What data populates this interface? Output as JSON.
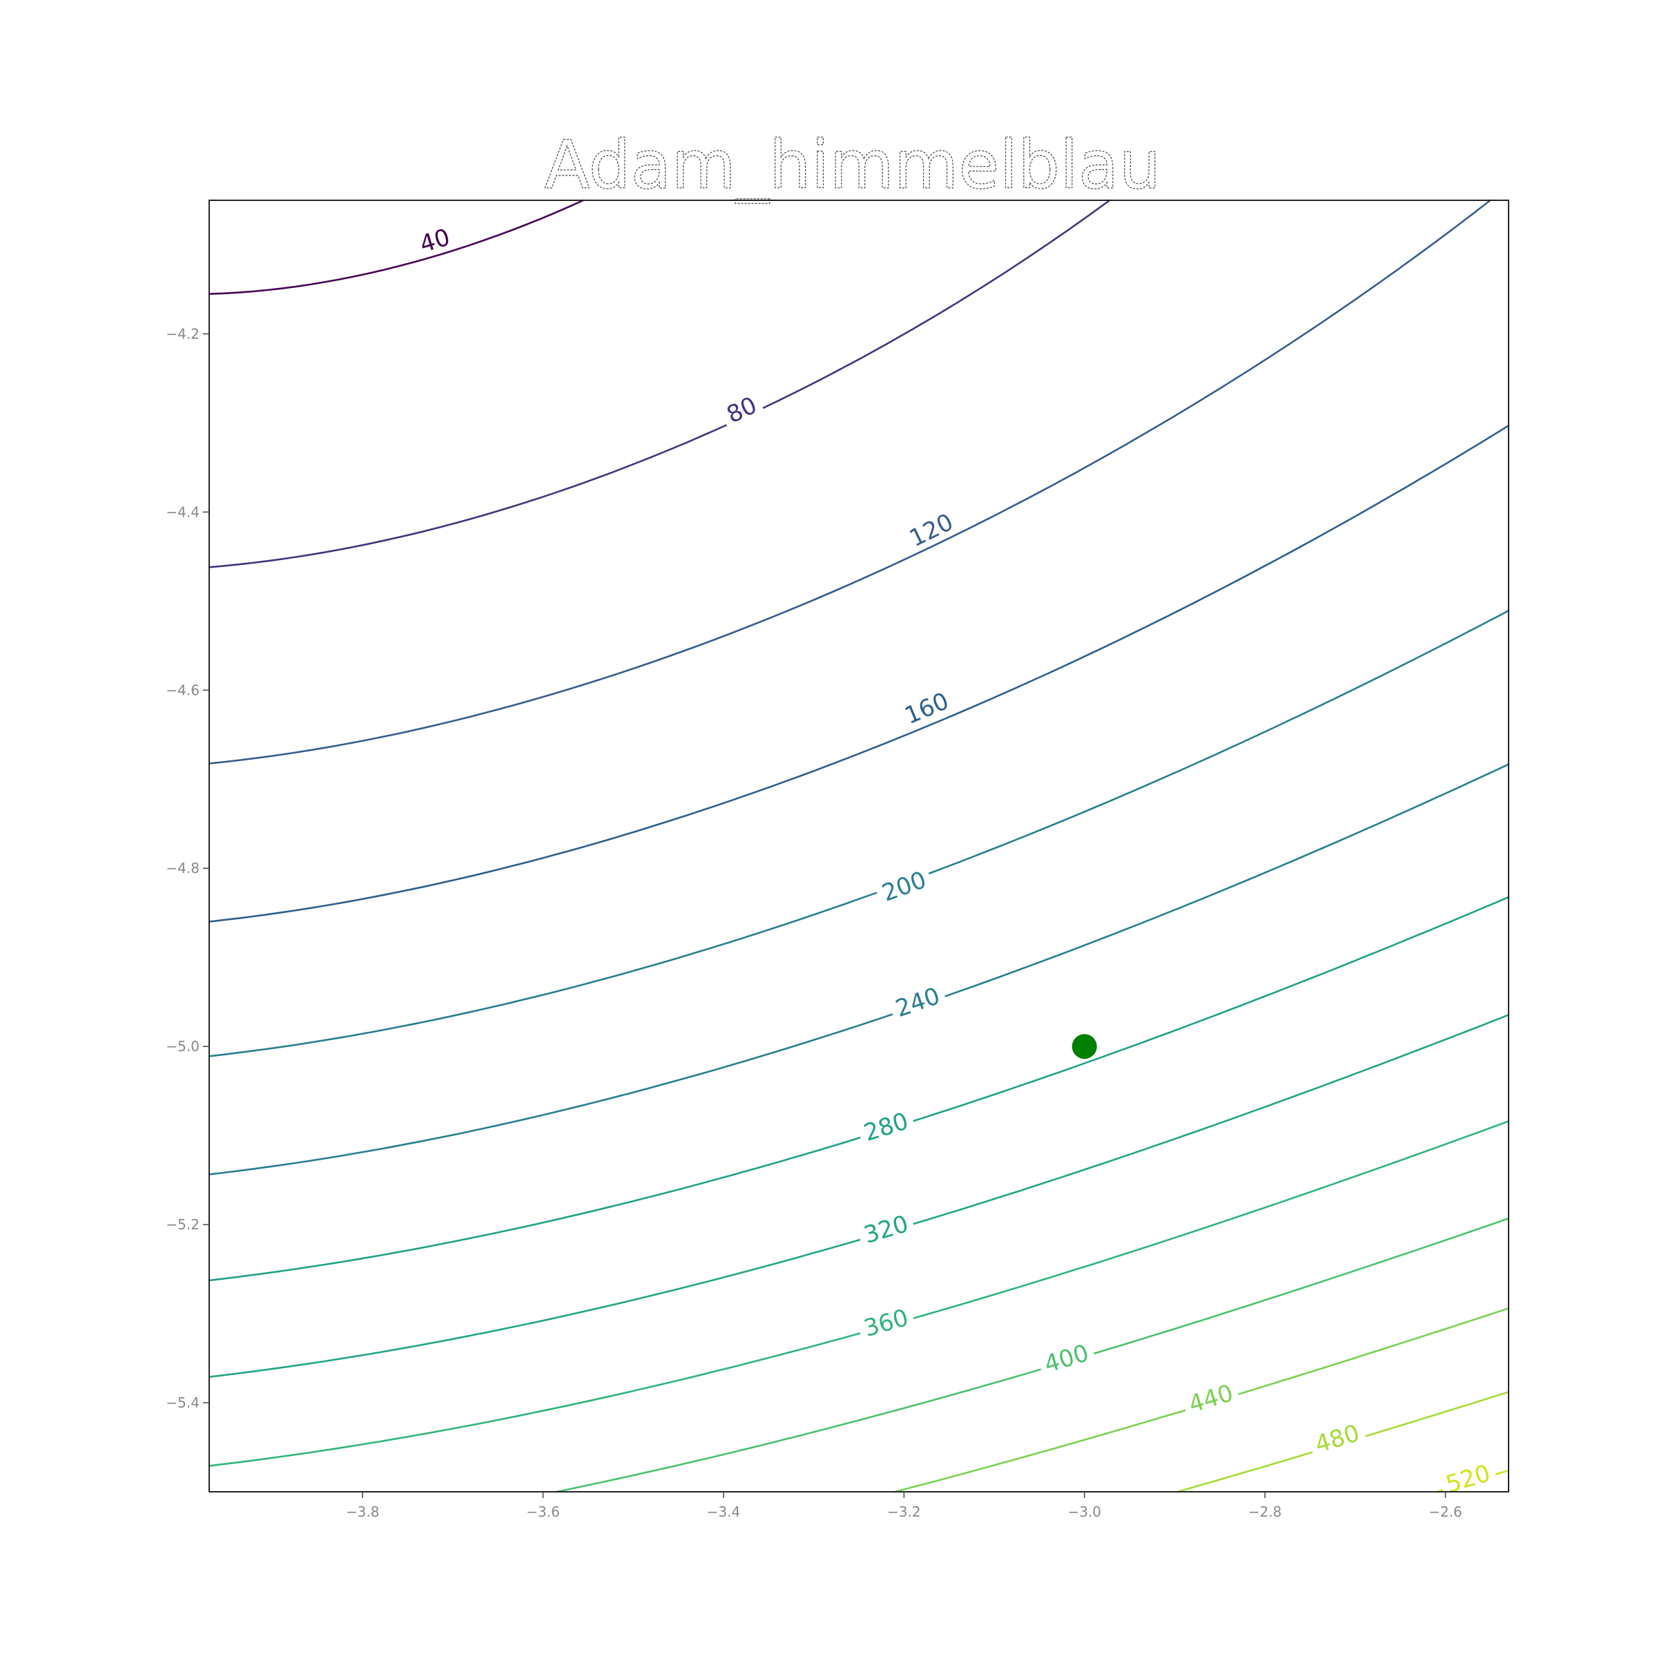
{
  "chart_data": {
    "type": "contour",
    "title": "Adam_himmelblau",
    "xlabel": "",
    "ylabel": "",
    "xlim": [
      -3.97,
      -2.53
    ],
    "ylim": [
      -5.5,
      -4.05
    ],
    "x_ticks": [
      {
        "value": -3.8,
        "label": "−3.8"
      },
      {
        "value": -3.6,
        "label": "−3.6"
      },
      {
        "value": -3.4,
        "label": "−3.4"
      },
      {
        "value": -3.2,
        "label": "−3.2"
      },
      {
        "value": -3.0,
        "label": "−3.0"
      },
      {
        "value": -2.8,
        "label": "−2.8"
      },
      {
        "value": -2.6,
        "label": "−2.6"
      }
    ],
    "y_ticks": [
      {
        "value": -4.2,
        "label": "−4.2"
      },
      {
        "value": -4.4,
        "label": "−4.4"
      },
      {
        "value": -4.6,
        "label": "−4.6"
      },
      {
        "value": -4.8,
        "label": "−4.8"
      },
      {
        "value": -5.0,
        "label": "−5.0"
      },
      {
        "value": -5.2,
        "label": "−5.2"
      },
      {
        "value": -5.4,
        "label": "−5.4"
      }
    ],
    "function": "himmelblau",
    "contour_levels": [
      {
        "level": 40,
        "label": "40",
        "color": "#440154",
        "label_at": [
          -3.72,
          -4.095
        ]
      },
      {
        "level": 80,
        "label": "80",
        "color": "#46327e",
        "label_at": [
          -3.38,
          -4.285
        ]
      },
      {
        "level": 120,
        "label": "120",
        "color": "#365c8d",
        "label_at": [
          -3.17,
          -4.42
        ]
      },
      {
        "level": 160,
        "label": "160",
        "color": "#2c5f8c",
        "label_at": [
          -3.175,
          -4.62
        ]
      },
      {
        "level": 200,
        "label": "200",
        "color": "#277f8e",
        "label_at": [
          -3.2,
          -4.82
        ]
      },
      {
        "level": 240,
        "label": "240",
        "color": "#277f8e",
        "label_at": [
          -3.185,
          -4.95
        ]
      },
      {
        "level": 280,
        "label": "280",
        "color": "#1fa187",
        "label_at": [
          -3.22,
          -5.09
        ]
      },
      {
        "level": 320,
        "label": "320",
        "color": "#21a585",
        "label_at": [
          -3.22,
          -5.205
        ]
      },
      {
        "level": 360,
        "label": "360",
        "color": "#2fb47c",
        "label_at": [
          -3.22,
          -5.31
        ]
      },
      {
        "level": 400,
        "label": "400",
        "color": "#4ac16d",
        "label_at": [
          -3.02,
          -5.35
        ]
      },
      {
        "level": 440,
        "label": "440",
        "color": "#7ad151",
        "label_at": [
          -2.86,
          -5.395
        ]
      },
      {
        "level": 480,
        "label": "480",
        "color": "#a5db36",
        "label_at": [
          -2.72,
          -5.44
        ]
      },
      {
        "level": 520,
        "label": "520",
        "color": "#d2e21b",
        "label_at": [
          -2.575,
          -5.485
        ]
      }
    ],
    "points": [
      {
        "x": -3.0,
        "y": -5.0,
        "color": "#008000"
      }
    ]
  }
}
